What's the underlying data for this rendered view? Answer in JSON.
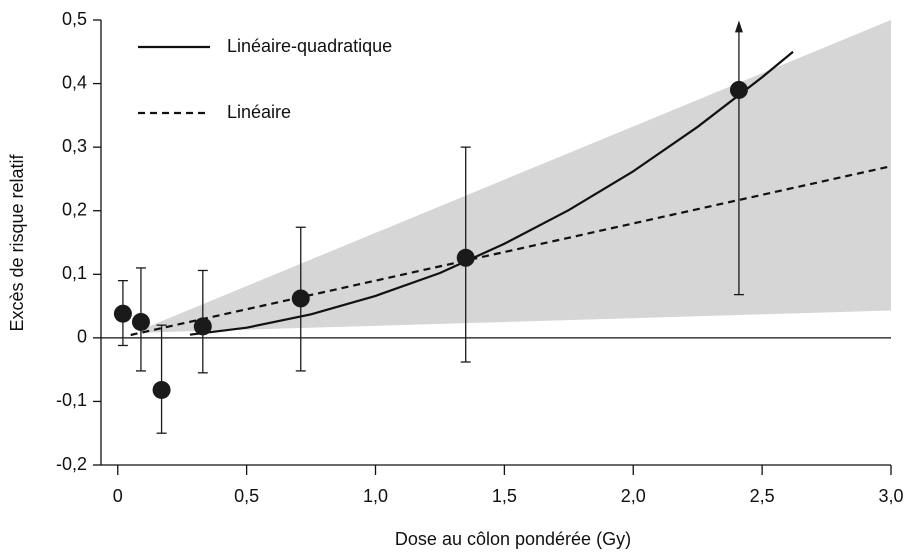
{
  "chart_data": {
    "type": "scatter",
    "x_label": "Dose au côlon pondérée (Gy)",
    "y_label": "Excès de risque relatif",
    "xlim": [
      -0.065,
      3.0
    ],
    "ylim": [
      -0.2,
      0.5
    ],
    "xticks": [
      0,
      {
        "value": 0.5,
        "label": "0,5"
      },
      {
        "value": 1,
        "label": "1,0"
      },
      {
        "value": 1.5,
        "label": "1,5"
      },
      {
        "value": 2,
        "label": "2,0"
      },
      {
        "value": 2.5,
        "label": "2,5"
      },
      {
        "value": 3,
        "label": "3,0"
      }
    ],
    "yticks": [
      {
        "value": -0.2,
        "label": "-0,2"
      },
      {
        "value": -0.1,
        "label": "-0,1"
      },
      0,
      {
        "value": 0.1,
        "label": "0,1"
      },
      {
        "value": 0.2,
        "label": "0,2"
      },
      {
        "value": 0.3,
        "label": "0,3"
      },
      {
        "value": 0.4,
        "label": "0,4"
      },
      {
        "value": 0.5,
        "label": "0,5"
      }
    ],
    "hline": 0,
    "band": {
      "color": "#d6d6d6",
      "x": [
        0.085,
        3.0
      ],
      "upper": [
        0.012,
        0.5
      ],
      "lower": [
        0.008,
        0.043
      ]
    },
    "points": {
      "color": "#1a1a1a",
      "x": [
        0.02,
        0.09,
        0.17,
        0.33,
        0.71,
        1.35,
        2.41
      ],
      "values": [
        0.038,
        0.025,
        -0.082,
        0.018,
        0.062,
        0.126,
        0.39
      ],
      "lower": [
        -0.012,
        -0.052,
        -0.15,
        -0.055,
        -0.052,
        -0.038,
        0.068
      ],
      "upper": [
        0.09,
        0.11,
        0.02,
        0.106,
        0.174,
        0.3,
        0.49
      ],
      "open_upper": [
        false,
        false,
        false,
        false,
        false,
        false,
        true
      ]
    },
    "series": [
      {
        "name": "Linéaire-quadratique",
        "style": "solid",
        "color": "#111",
        "x": [
          0.28,
          0.5,
          0.75,
          1.0,
          1.25,
          1.5,
          1.75,
          2.0,
          2.25,
          2.5,
          2.62
        ],
        "values": [
          0.005,
          0.016,
          0.037,
          0.066,
          0.102,
          0.148,
          0.201,
          0.262,
          0.332,
          0.41,
          0.45
        ]
      },
      {
        "name": "Linéaire",
        "style": "dashed",
        "color": "#111",
        "x": [
          0.05,
          3.0
        ],
        "values": [
          0.0045,
          0.27
        ]
      }
    ]
  }
}
